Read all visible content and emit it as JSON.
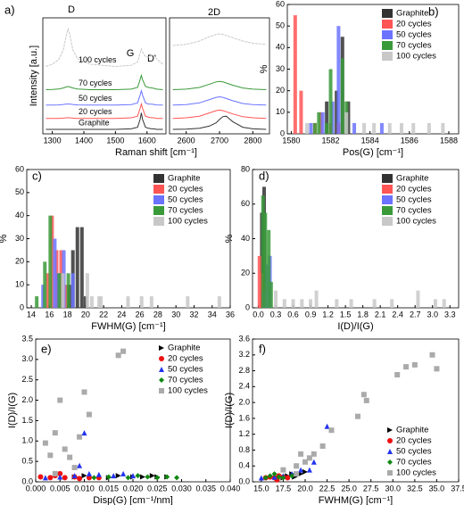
{
  "chart_data": [
    {
      "type": "line",
      "panel_label": "a)",
      "xlabel": "Raman shift [cm⁻¹]",
      "ylabel": "Intensity [a.u.]",
      "annotations": [
        "D",
        "G",
        "D'"
      ],
      "xlim": [
        1270,
        1660
      ],
      "ylim": [
        0,
        10.5
      ],
      "xticks": [
        1300,
        1400,
        1500,
        1600
      ],
      "x": [
        1280,
        1300,
        1320,
        1335,
        1345,
        1350,
        1355,
        1365,
        1380,
        1420,
        1500,
        1550,
        1570,
        1578,
        1582,
        1586,
        1595,
        1605,
        1615,
        1622,
        1630,
        1650
      ],
      "series": [
        {
          "name": "Graphite",
          "color": "#333333",
          "values": [
            0.4,
            0.4,
            0.4,
            0.4,
            0.4,
            0.4,
            0.4,
            0.4,
            0.4,
            0.4,
            0.4,
            0.45,
            0.6,
            1.3,
            1.9,
            1.3,
            0.6,
            0.5,
            0.45,
            0.45,
            0.4,
            0.4
          ]
        },
        {
          "name": "20 cycles",
          "color": "#ff5555",
          "values": [
            1.4,
            1.4,
            1.4,
            1.42,
            1.45,
            1.45,
            1.45,
            1.42,
            1.4,
            1.4,
            1.4,
            1.45,
            1.6,
            2.3,
            2.7,
            2.3,
            1.6,
            1.5,
            1.45,
            1.45,
            1.4,
            1.4
          ]
        },
        {
          "name": "50 cycles",
          "color": "#6b73ff",
          "values": [
            2.6,
            2.6,
            2.62,
            2.66,
            2.7,
            2.7,
            2.7,
            2.66,
            2.62,
            2.6,
            2.6,
            2.65,
            2.8,
            3.5,
            3.9,
            3.5,
            2.8,
            2.7,
            2.68,
            2.66,
            2.62,
            2.6
          ]
        },
        {
          "name": "70 cycles",
          "color": "#3a9a3a",
          "values": [
            4.0,
            4.02,
            4.06,
            4.15,
            4.25,
            4.28,
            4.25,
            4.15,
            4.06,
            4.0,
            4.0,
            4.05,
            4.2,
            4.9,
            5.3,
            4.9,
            4.3,
            4.2,
            4.15,
            4.12,
            4.05,
            4.0
          ]
        },
        {
          "name": "100 cycles",
          "color": "#c8c8c8",
          "values": [
            6.1,
            6.3,
            6.7,
            7.6,
            9.0,
            9.5,
            9.0,
            7.6,
            6.8,
            6.3,
            6.1,
            6.2,
            6.5,
            7.3,
            7.7,
            7.4,
            7.0,
            6.95,
            7.1,
            7.1,
            6.8,
            6.3
          ]
        }
      ]
    },
    {
      "type": "line",
      "annotations": [
        "2D"
      ],
      "xlim": [
        2550,
        2850
      ],
      "ylim": [
        0,
        10.5
      ],
      "xticks": [
        2600,
        2700,
        2800
      ],
      "x": [
        2560,
        2600,
        2640,
        2670,
        2690,
        2700,
        2710,
        2720,
        2740,
        2770,
        2800,
        2840
      ],
      "series": [
        {
          "color": "#333333",
          "values": [
            0.4,
            0.42,
            0.5,
            0.7,
            1.0,
            1.3,
            1.55,
            1.6,
            1.1,
            0.6,
            0.45,
            0.4
          ]
        },
        {
          "color": "#ff5555",
          "values": [
            1.4,
            1.45,
            1.6,
            1.9,
            2.1,
            2.15,
            2.1,
            2.0,
            1.8,
            1.55,
            1.45,
            1.4
          ]
        },
        {
          "color": "#6b73ff",
          "values": [
            2.6,
            2.65,
            2.8,
            3.1,
            3.3,
            3.35,
            3.3,
            3.2,
            3.0,
            2.75,
            2.65,
            2.6
          ]
        },
        {
          "color": "#3a9a3a",
          "values": [
            4.0,
            4.05,
            4.2,
            4.5,
            4.7,
            4.75,
            4.7,
            4.6,
            4.4,
            4.15,
            4.05,
            4.0
          ]
        },
        {
          "color": "#c8c8c8",
          "values": [
            8.0,
            8.1,
            8.4,
            8.8,
            9.0,
            9.05,
            9.0,
            8.9,
            8.7,
            8.4,
            8.2,
            8.1
          ]
        }
      ]
    },
    {
      "type": "bar",
      "panel_label": "b)",
      "xlabel": "Pos(G) [cm⁻¹]",
      "ylabel": "%",
      "legend": "upper right",
      "xlim": [
        1579.8,
        1588.5
      ],
      "ylim": [
        0,
        60
      ],
      "xticks": [
        1580,
        1582,
        1584,
        1586,
        1588
      ],
      "yticks": [
        0,
        10,
        20,
        30,
        40,
        50,
        60
      ],
      "series": [
        {
          "name": "Graphite",
          "color": "#333333",
          "x": [
            1581.8,
            1582.3,
            1582.6,
            1582.9
          ],
          "values": [
            15,
            20,
            45,
            15
          ]
        },
        {
          "name": "20 cycles",
          "color": "#ff5555",
          "x": [
            1580.2,
            1580.5,
            1581.2,
            1581.5,
            1582.0,
            1582.4
          ],
          "values": [
            55,
            20,
            5,
            10,
            5,
            5
          ]
        },
        {
          "name": "50 cycles",
          "color": "#6b73ff",
          "x": [
            1581.0,
            1581.6,
            1582.1,
            1582.4,
            1583.2,
            1584.6
          ],
          "values": [
            5,
            10,
            15,
            50,
            5,
            5
          ]
        },
        {
          "name": "70 cycles",
          "color": "#3a9a3a",
          "x": [
            1581.2,
            1581.4,
            1581.8,
            1582.0,
            1582.6,
            1582.8
          ],
          "values": [
            5,
            10,
            5,
            30,
            35,
            15
          ]
        },
        {
          "name": "100 cycles",
          "color": "#c8c8c8",
          "x": [
            1580.8,
            1582.8,
            1583.7,
            1584.2,
            1585.0,
            1585.6,
            1586.2,
            1587.0,
            1587.7
          ],
          "values": [
            5,
            10,
            5,
            5,
            5,
            5,
            5,
            5,
            5
          ]
        }
      ]
    },
    {
      "type": "bar",
      "panel_label": "c)",
      "xlabel": "FWHM(G) [cm⁻¹]",
      "ylabel": "%",
      "legend": "upper right",
      "xlim": [
        13.5,
        36
      ],
      "ylim": [
        0,
        60
      ],
      "xticks": [
        14,
        16,
        18,
        20,
        22,
        24,
        26,
        28,
        30,
        32,
        34,
        36
      ],
      "yticks": [
        0,
        10,
        20,
        30,
        40,
        50,
        60
      ],
      "series": [
        {
          "name": "Graphite",
          "color": "#333333",
          "x": [
            18.2,
            18.6,
            19.1,
            19.6,
            20.0
          ],
          "values": [
            10,
            25,
            35,
            35,
            5
          ]
        },
        {
          "name": "20 cycles",
          "color": "#ff5555",
          "x": [
            15.8,
            16.3,
            16.8,
            17.3,
            17.8
          ],
          "values": [
            15,
            40,
            25,
            25,
            10
          ]
        },
        {
          "name": "50 cycles",
          "color": "#6b73ff",
          "x": [
            15.3,
            16.6,
            17.0,
            17.6,
            18.6
          ],
          "values": [
            10,
            30,
            15,
            25,
            15
          ]
        },
        {
          "name": "70 cycles",
          "color": "#3a9a3a",
          "x": [
            14.6,
            15.5,
            16.1,
            17.1,
            18.1
          ],
          "values": [
            5,
            20,
            40,
            15,
            15
          ]
        },
        {
          "name": "100 cycles",
          "color": "#c8c8c8",
          "x": [
            17.5,
            20.2,
            20.7,
            21.5,
            21.7,
            24.7,
            26.2,
            27.3,
            31.3,
            34.8
          ],
          "values": [
            15,
            15,
            5,
            5,
            5,
            5,
            5,
            5,
            5,
            5
          ]
        }
      ]
    },
    {
      "type": "bar",
      "panel_label": "d)",
      "xlabel": "I(D)/I(G)",
      "ylabel": "%",
      "legend": "upper right",
      "xlim": [
        -0.1,
        3.45
      ],
      "ylim": [
        0,
        80
      ],
      "xticks": [
        {
          "value": 0,
          "label": "0.0"
        },
        0.3,
        0.6,
        0.9,
        1.2,
        1.5,
        1.8,
        2.1,
        2.4,
        2.7,
        {
          "value": 3,
          "label": "3.0"
        },
        3.3
      ],
      "yticks": [
        0,
        20,
        40,
        60,
        80
      ],
      "series": [
        {
          "name": "Graphite",
          "color": "#333333",
          "x": [
            0.06,
            0.1
          ],
          "values": [
            55,
            70
          ]
        },
        {
          "name": "20 cycles",
          "color": "#ff5555",
          "x": [
            0.02,
            0.06,
            0.1
          ],
          "values": [
            30,
            20,
            5
          ]
        },
        {
          "name": "50 cycles",
          "color": "#6b73ff",
          "x": [
            0.1,
            0.15,
            0.2
          ],
          "values": [
            10,
            25,
            30
          ]
        },
        {
          "name": "70 cycles",
          "color": "#3a9a3a",
          "x": [
            0.08,
            0.12,
            0.18,
            0.22
          ],
          "values": [
            65,
            55,
            45,
            15
          ]
        },
        {
          "name": "100 cycles",
          "color": "#c8c8c8",
          "x": [
            0.3,
            0.45,
            0.6,
            0.75,
            0.9,
            1.0,
            1.35,
            1.6,
            2.0,
            2.3,
            2.75,
            3.05,
            3.2
          ],
          "values": [
            10,
            5,
            5,
            5,
            5,
            10,
            5,
            5,
            5,
            5,
            10,
            5,
            5
          ]
        }
      ]
    },
    {
      "type": "scatter",
      "panel_label": "e)",
      "xlabel": "Disp(G) [cm⁻¹/nm]",
      "ylabel": "I(D)/I(G)",
      "legend": "upper right",
      "xlim": [
        0,
        0.04
      ],
      "ylim": [
        0,
        3.5
      ],
      "xticks": [
        {
          "value": 0,
          "label": "0.000"
        },
        0.005,
        {
          "value": 0.01,
          "label": "0.010"
        },
        0.015,
        {
          "value": 0.02,
          "label": "0.020"
        },
        0.025,
        {
          "value": 0.03,
          "label": "0.030"
        },
        0.035,
        {
          "value": 0.04,
          "label": "0.040"
        }
      ],
      "yticks": [
        {
          "value": 0,
          "label": "0.0"
        },
        0.5,
        {
          "value": 1,
          "label": "1.0"
        },
        1.5,
        {
          "value": 2,
          "label": "2.0"
        },
        2.5,
        {
          "value": 3,
          "label": "3.0"
        },
        3.5
      ],
      "series": [
        {
          "name": "Graphite",
          "color": "#000000",
          "marker": "triangle-right",
          "x": [
            0.008,
            0.01,
            0.015,
            0.017,
            0.02,
            0.022,
            0.024,
            0.025,
            0.027
          ],
          "values": [
            0.12,
            0.15,
            0.1,
            0.15,
            0.12,
            0.12,
            0.15,
            0.12,
            0.12
          ]
        },
        {
          "name": "20 cycles",
          "color": "#ee1111",
          "marker": "circle",
          "x": [
            0.001,
            0.003,
            0.004,
            0.005,
            0.006,
            0.008,
            0.009,
            0.011,
            0.013
          ],
          "values": [
            0.12,
            0.1,
            0.15,
            0.2,
            0.1,
            0.12,
            0.08,
            0.1,
            0.1
          ]
        },
        {
          "name": "50 cycles",
          "color": "#2233ee",
          "marker": "triangle-up",
          "x": [
            0.002,
            0.005,
            0.008,
            0.009,
            0.01,
            0.011,
            0.013,
            0.016,
            0.018,
            0.02
          ],
          "values": [
            0.1,
            0.12,
            0.15,
            0.4,
            1.2,
            0.2,
            0.18,
            0.15,
            0.2,
            0.15
          ]
        },
        {
          "name": "70 cycles",
          "color": "#118811",
          "marker": "diamond",
          "x": [
            0.012,
            0.015,
            0.019,
            0.021,
            0.023,
            0.025,
            0.027,
            0.029
          ],
          "values": [
            0.1,
            0.12,
            0.1,
            0.15,
            0.12,
            0.1,
            0.12,
            0.1
          ]
        },
        {
          "name": "100 cycles",
          "color": "#aaaaaa",
          "marker": "square",
          "x": [
            0.002,
            0.003,
            0.004,
            0.004,
            0.005,
            0.006,
            0.007,
            0.008,
            0.009,
            0.01,
            0.011,
            0.017,
            0.018
          ],
          "values": [
            0.95,
            0.65,
            1.2,
            0.2,
            2.0,
            0.8,
            0.6,
            0.35,
            1.1,
            2.2,
            1.65,
            3.1,
            3.2
          ]
        }
      ]
    },
    {
      "type": "scatter",
      "panel_label": "f)",
      "xlabel": "FWHM(G) [cm⁻¹]",
      "ylabel": "I(D)/I(G)",
      "legend": "lower right",
      "xlim": [
        14,
        37.5
      ],
      "ylim": [
        0,
        3.6
      ],
      "xticks": [
        {
          "value": 15,
          "label": "15.0"
        },
        17.5,
        {
          "value": 20,
          "label": "20.0"
        },
        22.5,
        {
          "value": 25,
          "label": "25.0"
        },
        27.5,
        {
          "value": 30,
          "label": "30.0"
        },
        32.5,
        {
          "value": 35,
          "label": "35.0"
        },
        37.5
      ],
      "yticks": [
        {
          "value": 0,
          "label": "0.0"
        },
        0.4,
        0.8,
        1.2,
        1.6,
        {
          "value": 2,
          "label": "2.0"
        },
        2.4,
        2.8,
        3.2,
        3.6
      ],
      "series": [
        {
          "name": "Graphite",
          "color": "#000000",
          "marker": "triangle-right",
          "x": [
            17.5,
            18.0,
            18.5,
            18.8,
            19.0,
            19.5,
            20.0
          ],
          "values": [
            0.1,
            0.15,
            0.2,
            0.12,
            0.15,
            0.2,
            0.25
          ]
        },
        {
          "name": "20 cycles",
          "color": "#ee1111",
          "marker": "circle",
          "x": [
            15.5,
            16.0,
            16.5,
            16.8,
            17.0,
            17.5,
            18.0
          ],
          "values": [
            0.1,
            0.12,
            0.1,
            0.05,
            0.15,
            0.12,
            0.1
          ]
        },
        {
          "name": "50 cycles",
          "color": "#2233ee",
          "marker": "triangle-up",
          "x": [
            15.0,
            16.5,
            17.5,
            18.5,
            19.5,
            20.5,
            21.0,
            22.5
          ],
          "values": [
            0.1,
            0.12,
            0.15,
            0.2,
            0.3,
            0.3,
            0.5,
            1.4
          ]
        },
        {
          "name": "70 cycles",
          "color": "#118811",
          "marker": "diamond",
          "x": [
            15.5,
            16.0,
            16.5,
            17.0,
            17.5,
            18.5
          ],
          "values": [
            0.1,
            0.15,
            0.2,
            0.12,
            0.1,
            0.15
          ]
        },
        {
          "name": "100 cycles",
          "color": "#aaaaaa",
          "marker": "square",
          "x": [
            17.5,
            19.0,
            19.0,
            19.5,
            20.0,
            20.5,
            21.0,
            22.0,
            23.0,
            26.0,
            26.7,
            27.0,
            30.5,
            31.5,
            32.5,
            34.5,
            35.0
          ],
          "values": [
            0.3,
            0.4,
            0.2,
            0.7,
            0.5,
            0.6,
            0.7,
            0.9,
            1.3,
            1.65,
            2.2,
            2.05,
            2.7,
            2.9,
            2.95,
            3.2,
            2.85
          ]
        }
      ]
    }
  ]
}
